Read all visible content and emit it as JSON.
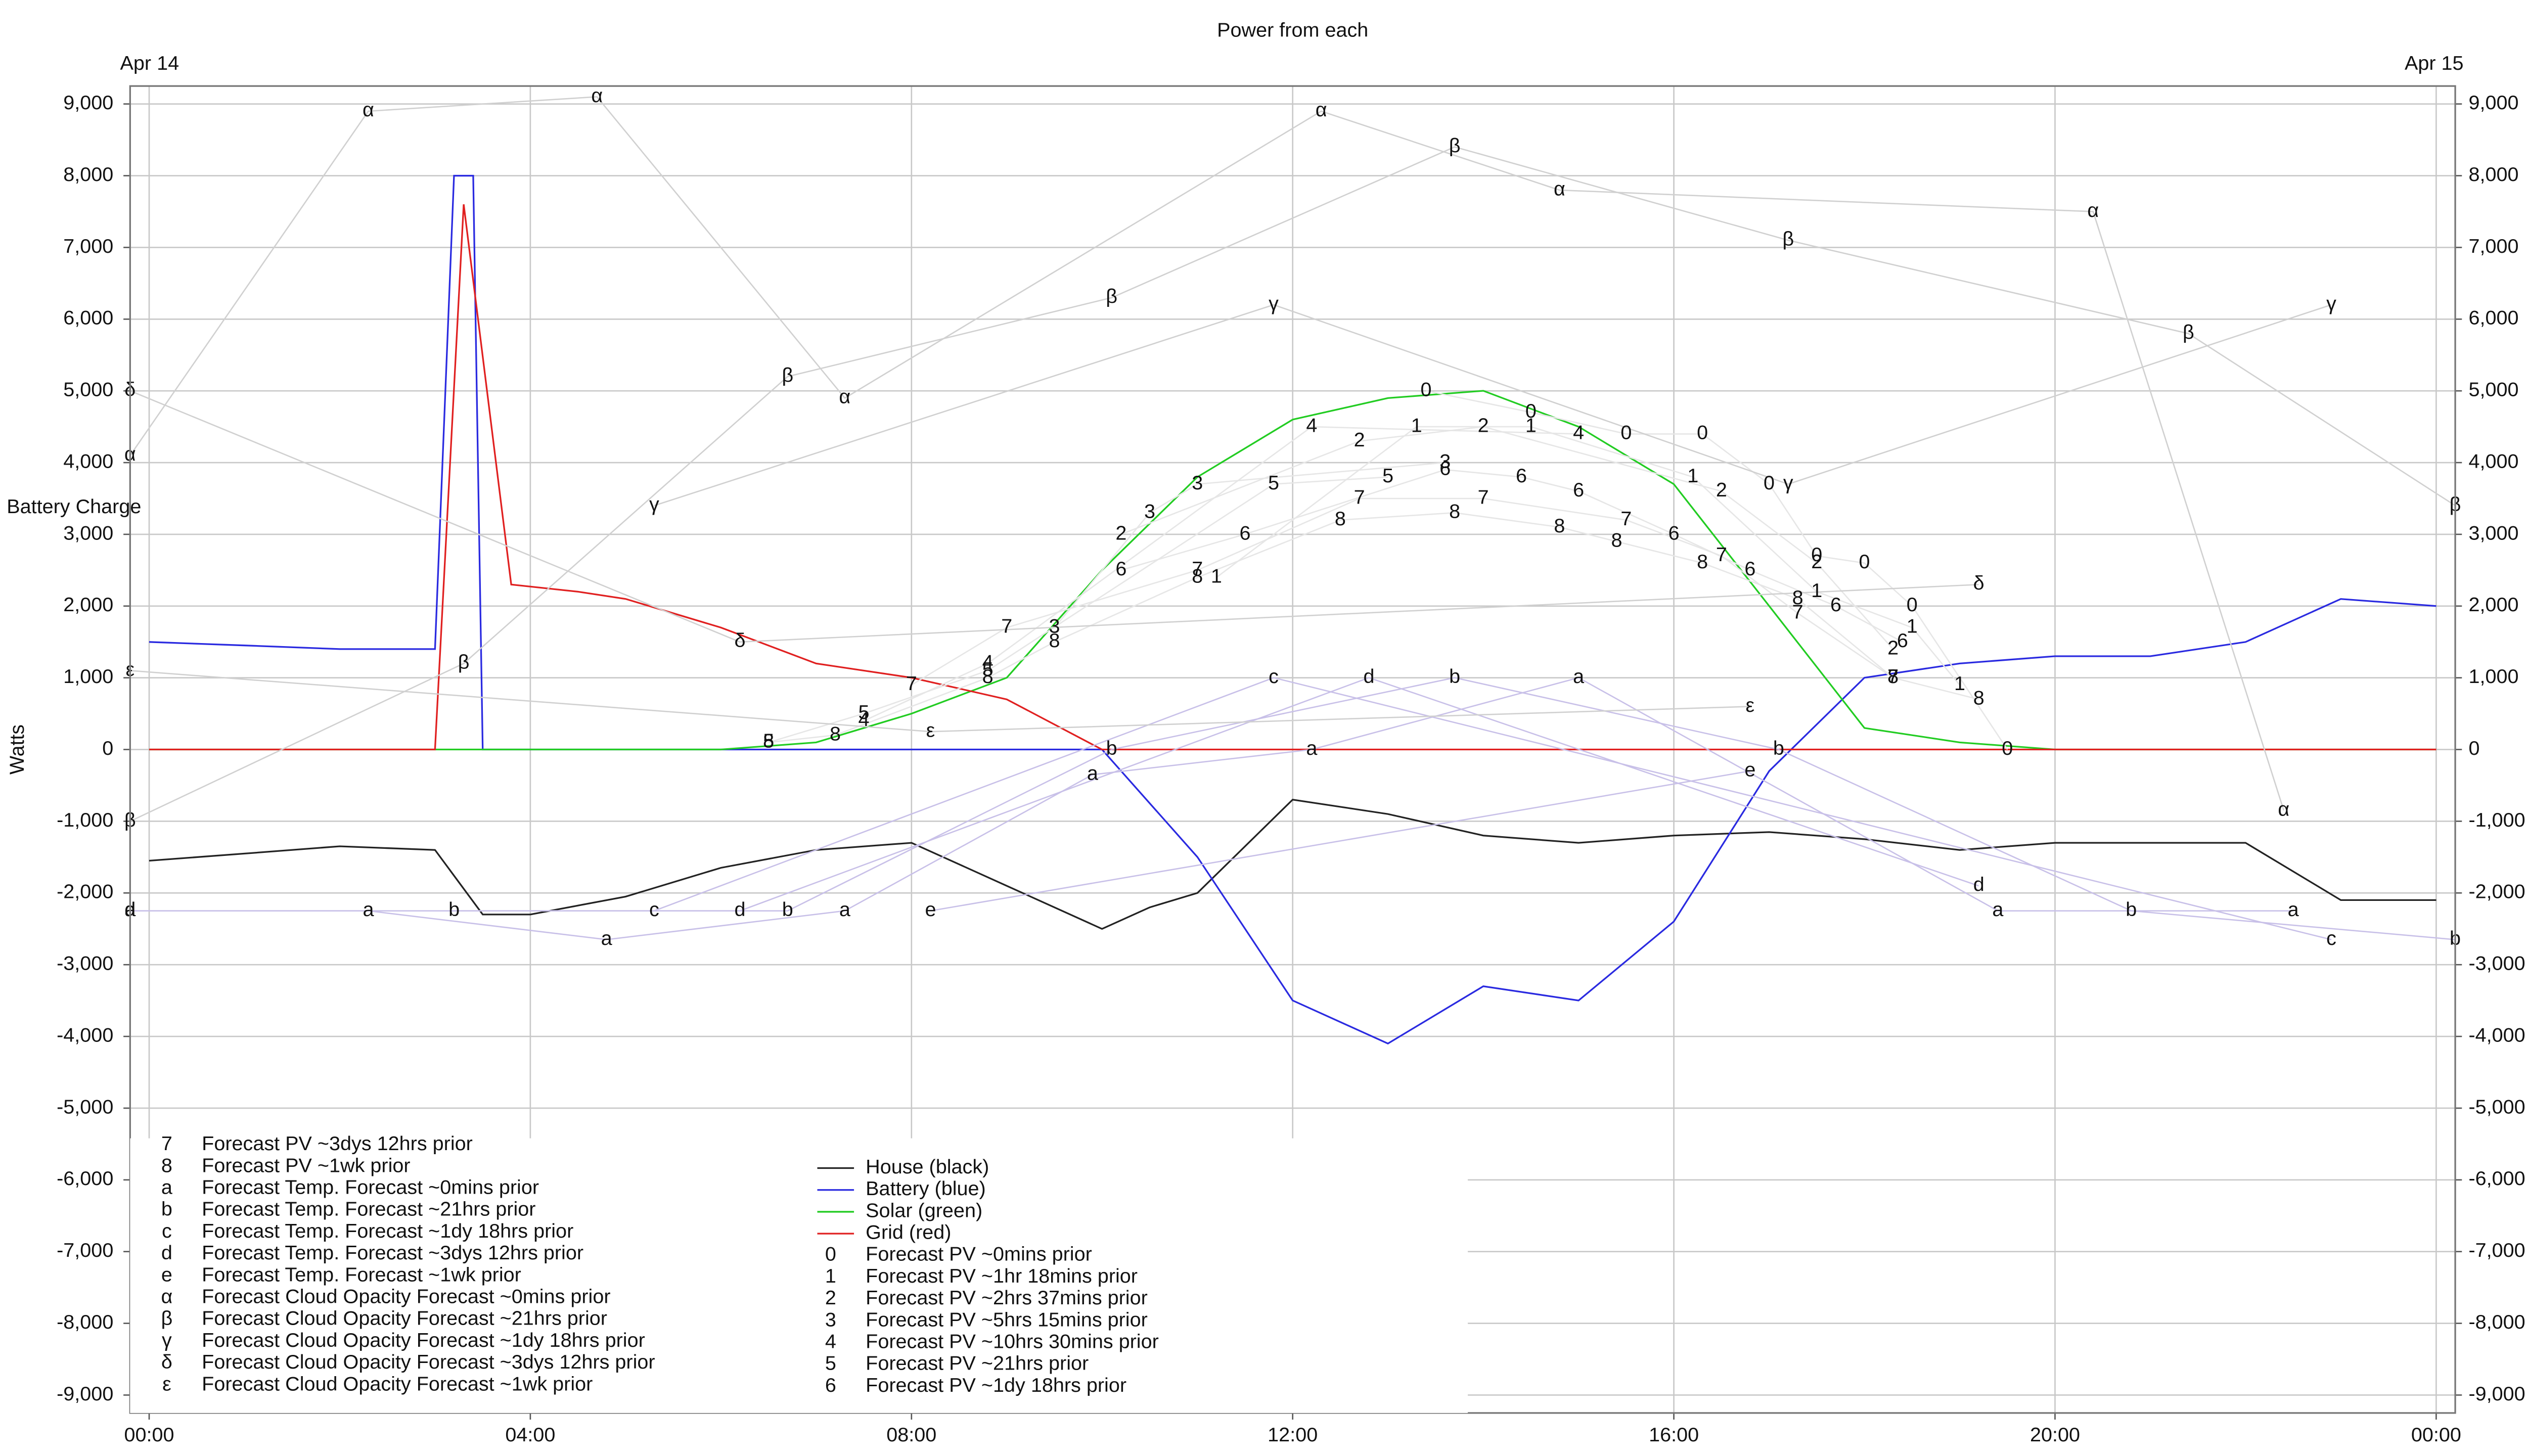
{
  "chart_data": {
    "type": "line",
    "title": "Power from each",
    "date_labels": [
      "Apr 14",
      "Apr 15"
    ],
    "annotation": "Battery Charge",
    "y_label": "Watts",
    "xlim": [
      -0.2,
      24.2
    ],
    "ylim": [
      -9250,
      9250
    ],
    "grid": true,
    "xticks": [
      {
        "value": 0,
        "label": "00:00"
      },
      {
        "value": 4,
        "label": "04:00"
      },
      {
        "value": 8,
        "label": "08:00"
      },
      {
        "value": 12,
        "label": "12:00"
      },
      {
        "value": 16,
        "label": "16:00"
      },
      {
        "value": 20,
        "label": "20:00"
      },
      {
        "value": 24,
        "label": "00:00"
      }
    ],
    "yticks": [
      {
        "value": -9000,
        "label": "-9,000"
      },
      {
        "value": -8000,
        "label": "-8,000"
      },
      {
        "value": -7000,
        "label": "-7,000"
      },
      {
        "value": -6000,
        "label": "-6,000"
      },
      {
        "value": -5000,
        "label": "-5,000"
      },
      {
        "value": -4000,
        "label": "-4,000"
      },
      {
        "value": -3000,
        "label": "-3,000"
      },
      {
        "value": -2000,
        "label": "-2,000"
      },
      {
        "value": -1000,
        "label": "-1,000"
      },
      0,
      {
        "value": 1000,
        "label": "1,000"
      },
      {
        "value": 2000,
        "label": "2,000"
      },
      {
        "value": 3000,
        "label": "3,000"
      },
      {
        "value": 4000,
        "label": "4,000"
      },
      {
        "value": 5000,
        "label": "5,000"
      },
      {
        "value": 6000,
        "label": "6,000"
      },
      {
        "value": 7000,
        "label": "7,000"
      },
      {
        "value": 8000,
        "label": "8,000"
      },
      {
        "value": 9000,
        "label": "9,000"
      }
    ],
    "series": [
      {
        "name": "House (black)",
        "color": "#222222",
        "x": [
          0,
          1,
          2,
          3,
          3.5,
          4,
          5,
          6,
          7,
          8,
          9,
          10,
          10.5,
          11,
          12,
          13,
          14,
          15,
          16,
          17,
          18,
          19,
          20,
          21,
          22,
          23,
          24
        ],
        "values": [
          -1550,
          -1450,
          -1350,
          -1400,
          -2300,
          -2300,
          -2050,
          -1650,
          -1400,
          -1300,
          -1900,
          -2500,
          -2200,
          -2000,
          -700,
          -900,
          -1200,
          -1300,
          -1200,
          -1150,
          -1250,
          -1400,
          -1300,
          -1300,
          -1300,
          -2100,
          -2100
        ]
      },
      {
        "name": "Battery (blue)",
        "color": "#2a2ae0",
        "x": [
          0,
          1,
          2,
          3,
          3.2,
          3.4,
          3.5,
          4,
          5,
          6,
          7,
          8,
          9,
          10,
          11,
          12,
          13,
          14,
          15,
          16,
          17,
          18,
          19,
          20,
          21,
          22,
          23,
          24
        ],
        "values": [
          1500,
          1450,
          1400,
          1400,
          8000,
          8000,
          0,
          0,
          0,
          0,
          0,
          0,
          0,
          0,
          -1500,
          -3500,
          -4100,
          -3300,
          -3500,
          -2400,
          -300,
          1000,
          1200,
          1300,
          1300,
          1500,
          2100,
          2000
        ]
      },
      {
        "name": "Solar (green)",
        "color": "#22cc22",
        "x": [
          0,
          6,
          7,
          8,
          9,
          10,
          11,
          12,
          13,
          14,
          15,
          16,
          17,
          18,
          19,
          20,
          24
        ],
        "values": [
          0,
          0,
          100,
          500,
          1000,
          2500,
          3800,
          4600,
          4900,
          5000,
          4500,
          3700,
          2000,
          300,
          100,
          0,
          0
        ]
      },
      {
        "name": "Grid (red)",
        "color": "#e02020",
        "x": [
          0,
          3,
          3.3,
          3.8,
          4.5,
          5,
          6,
          7,
          8,
          9,
          10,
          24
        ],
        "values": [
          0,
          0,
          7600,
          2300,
          2200,
          2100,
          1700,
          1200,
          1000,
          700,
          0,
          0
        ]
      },
      {
        "name": "Forecast PV ~0mins prior",
        "marker": "0",
        "color": "#e6e6e6",
        "x": [
          13.4,
          14.5,
          15.5,
          16.3,
          17,
          17.5,
          18,
          18.5,
          19.5
        ],
        "values": [
          5000,
          4700,
          4400,
          4400,
          3700,
          2700,
          2600,
          2000,
          0
        ]
      },
      {
        "name": "Forecast PV ~1hr 18mins prior",
        "marker": "1",
        "color": "#e6e6e6",
        "x": [
          11.2,
          13.3,
          14.5,
          16.2,
          17.5,
          18.5,
          19
        ],
        "values": [
          2400,
          4500,
          4500,
          3800,
          2200,
          1700,
          900
        ]
      },
      {
        "name": "Forecast PV ~2hrs 37mins prior",
        "marker": "2",
        "color": "#e6e6e6",
        "x": [
          10.2,
          12.7,
          14,
          16.5,
          17.5,
          18.3
        ],
        "values": [
          3000,
          4300,
          4500,
          3600,
          2600,
          1400
        ]
      },
      {
        "name": "Forecast PV ~5hrs 15mins prior",
        "marker": "3",
        "color": "#e6e6e6",
        "x": [
          9.5,
          10.5,
          11,
          13.6
        ],
        "values": [
          1700,
          3300,
          3700,
          4000
        ]
      },
      {
        "name": "Forecast PV ~10hrs 30mins prior",
        "marker": "4",
        "color": "#e6e6e6",
        "x": [
          7.5,
          8.8,
          12.2,
          15
        ],
        "values": [
          400,
          1200,
          4500,
          4400
        ]
      },
      {
        "name": "Forecast PV ~21hrs prior",
        "marker": "5",
        "color": "#e6e6e6",
        "x": [
          6.5,
          7.5,
          8.8,
          11.8,
          13
        ],
        "values": [
          100,
          500,
          1100,
          3700,
          3800
        ]
      },
      {
        "name": "Forecast PV ~1dy 18hrs prior",
        "marker": "6",
        "color": "#e6e6e6",
        "x": [
          10.2,
          11.5,
          13.6,
          14.4,
          15,
          16,
          16.8,
          17.7,
          18.4
        ],
        "values": [
          2500,
          3000,
          3900,
          3800,
          3600,
          3000,
          2500,
          2000,
          1500
        ]
      },
      {
        "name": "Forecast PV ~3dys 12hrs prior",
        "marker": "7",
        "color": "#e6e6e6",
        "x": [
          8,
          9,
          11,
          12.7,
          14,
          15.5,
          16.5,
          17.3,
          18.3
        ],
        "values": [
          900,
          1700,
          2500,
          3500,
          3500,
          3200,
          2700,
          1900,
          1000
        ]
      },
      {
        "name": "Forecast PV ~1wk prior",
        "marker": "8",
        "color": "#e6e6e6",
        "x": [
          6.5,
          7.2,
          8.8,
          9.5,
          11,
          12.5,
          13.7,
          14.8,
          15.4,
          16.3,
          17.3,
          18.3,
          19.2
        ],
        "values": [
          100,
          200,
          1000,
          1500,
          2400,
          3200,
          3300,
          3100,
          2900,
          2600,
          2100,
          1000,
          700
        ]
      },
      {
        "name": "Forecast Temp. Forecast ~0mins prior",
        "marker": "a",
        "color": "#c8c0e8",
        "x": [
          -0.2,
          2.3,
          4.8,
          7.3,
          9.9,
          12.2,
          15,
          19.4,
          22.5
        ],
        "values": [
          -2250,
          -2250,
          -2650,
          -2250,
          -350,
          0,
          1000,
          -2250,
          -2250
        ]
      },
      {
        "name": "Forecast Temp. Forecast ~21hrs prior",
        "marker": "b",
        "color": "#c8c0e8",
        "x": [
          3.2,
          6.7,
          10.1,
          13.7,
          17.1,
          20.8,
          24.2
        ],
        "values": [
          -2250,
          -2250,
          0,
          1000,
          0,
          -2250,
          -2650
        ]
      },
      {
        "name": "Forecast Temp. Forecast ~1dy 18hrs prior",
        "marker": "c",
        "color": "#c8c0e8",
        "x": [
          5.3,
          11.8,
          22.9
        ],
        "values": [
          -2250,
          1000,
          -2650
        ]
      },
      {
        "name": "Forecast Temp. Forecast ~3dys 12hrs prior",
        "marker": "d",
        "color": "#c8c0e8",
        "x": [
          -0.2,
          6.2,
          12.8,
          19.2
        ],
        "values": [
          -2250,
          -2250,
          1000,
          -1900
        ]
      },
      {
        "name": "Forecast Temp. Forecast ~1wk prior",
        "marker": "e",
        "color": "#c8c0e8",
        "x": [
          8.2,
          16.8
        ],
        "values": [
          -2250,
          -300
        ]
      },
      {
        "name": "Forecast Cloud Opacity Forecast ~0mins prior",
        "marker": "α",
        "color": "#d0d0d0",
        "x": [
          -0.2,
          2.3,
          4.7,
          7.3,
          12.3,
          14.8,
          20.4,
          22.4
        ],
        "values": [
          4100,
          8900,
          9100,
          4900,
          8900,
          7800,
          7500,
          -850
        ]
      },
      {
        "name": "Forecast Cloud Opacity Forecast ~21hrs prior",
        "marker": "β",
        "color": "#d0d0d0",
        "x": [
          -0.2,
          3.3,
          6.7,
          10.1,
          13.7,
          17.2,
          21.4,
          24.2
        ],
        "values": [
          -1000,
          1200,
          5200,
          6300,
          8400,
          7100,
          5800,
          3400
        ]
      },
      {
        "name": "Forecast Cloud Opacity Forecast ~1dy 18hrs prior",
        "marker": "γ",
        "color": "#d0d0d0",
        "x": [
          5.3,
          11.8,
          17.2,
          22.9
        ],
        "values": [
          3400,
          6200,
          3700,
          6200
        ]
      },
      {
        "name": "Forecast Cloud Opacity Forecast ~3dys 12hrs prior",
        "marker": "δ",
        "color": "#d0d0d0",
        "x": [
          -0.2,
          6.2,
          19.2
        ],
        "values": [
          5000,
          1500,
          2300
        ]
      },
      {
        "name": "Forecast Cloud Opacity Forecast ~1wk prior",
        "marker": "ε",
        "color": "#d0d0d0",
        "x": [
          -0.2,
          8.2,
          16.8
        ],
        "values": [
          1100,
          250,
          600
        ]
      }
    ]
  }
}
